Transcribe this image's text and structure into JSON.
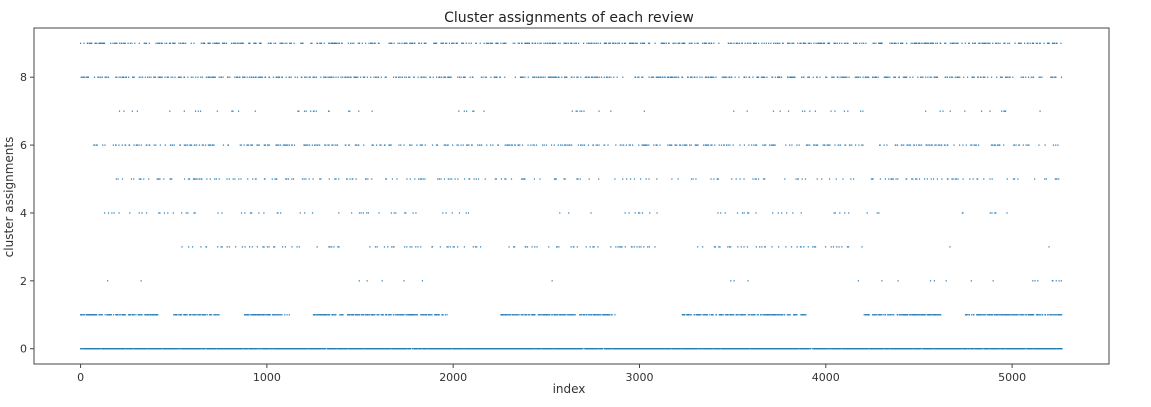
{
  "chart_data": {
    "type": "scatter",
    "title": "Cluster assignments of each review",
    "xlabel": "index",
    "ylabel": "cluster assignments",
    "xlim": [
      -250,
      5520
    ],
    "ylim": [
      -0.45,
      9.45
    ],
    "xticks": [
      0,
      1000,
      2000,
      3000,
      4000,
      5000
    ],
    "yticks": [
      0,
      2,
      4,
      6,
      8
    ],
    "grid": false,
    "legend": "none",
    "marker_color": "#1f77b4",
    "n_points": 5270,
    "clusters": [
      {
        "value": 0,
        "ranges": [
          [
            0,
            5270
          ]
        ],
        "density": 0.95
      },
      {
        "value": 1,
        "ranges": [
          [
            0,
            420
          ],
          [
            500,
            750
          ],
          [
            880,
            1120
          ],
          [
            1250,
            1970
          ],
          [
            2250,
            2880
          ],
          [
            3230,
            3900
          ],
          [
            4200,
            4620
          ],
          [
            4750,
            5270
          ]
        ],
        "density": 0.62
      },
      {
        "value": 2,
        "ranges": [
          [
            100,
            400
          ],
          [
            1400,
            1900
          ],
          [
            2450,
            2700
          ],
          [
            3400,
            3800
          ],
          [
            4100,
            5270
          ]
        ],
        "density": 0.04
      },
      {
        "value": 3,
        "ranges": [
          [
            150,
            170
          ],
          [
            520,
            1400
          ],
          [
            1550,
            2150
          ],
          [
            2300,
            3100
          ],
          [
            3300,
            4200
          ],
          [
            4660,
            4700
          ],
          [
            5180,
            5200
          ]
        ],
        "density": 0.12
      },
      {
        "value": 4,
        "ranges": [
          [
            120,
            2150
          ],
          [
            2350,
            3100
          ],
          [
            3400,
            4400
          ],
          [
            4700,
            5050
          ]
        ],
        "density": 0.06
      },
      {
        "value": 5,
        "ranges": [
          [
            150,
            5270
          ]
        ],
        "density": 0.14
      },
      {
        "value": 6,
        "ranges": [
          [
            50,
            5270
          ]
        ],
        "density": 0.22
      },
      {
        "value": 7,
        "ranges": [
          [
            200,
            1600
          ],
          [
            2000,
            2200
          ],
          [
            2600,
            3100
          ],
          [
            3500,
            4300
          ],
          [
            4500,
            5050
          ],
          [
            5150,
            5270
          ]
        ],
        "density": 0.05
      },
      {
        "value": 8,
        "ranges": [
          [
            0,
            5270
          ]
        ],
        "density": 0.3
      },
      {
        "value": 9,
        "ranges": [
          [
            0,
            5270
          ]
        ],
        "density": 0.3
      }
    ]
  }
}
